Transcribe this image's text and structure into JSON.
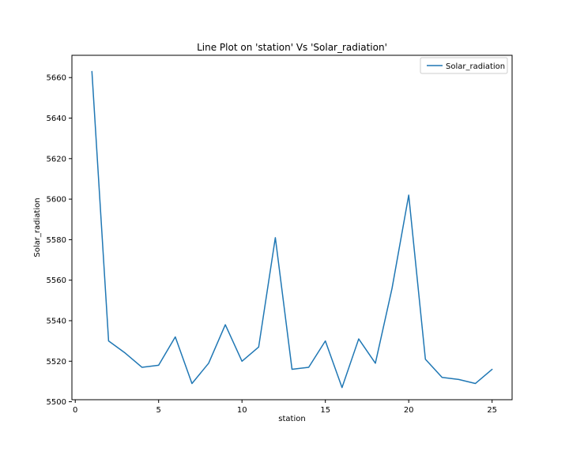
{
  "chart_data": {
    "type": "line",
    "title": "Line Plot on 'station' Vs 'Solar_radiation'",
    "xlabel": "station",
    "ylabel": "Solar_radiation",
    "x": [
      1,
      2,
      3,
      4,
      5,
      6,
      7,
      8,
      9,
      10,
      11,
      12,
      13,
      14,
      15,
      16,
      17,
      18,
      19,
      20,
      21,
      22,
      23,
      24,
      25
    ],
    "series": [
      {
        "name": "Solar_radiation",
        "color": "#1f77b4",
        "values": [
          5663,
          5530,
          5524,
          5517,
          5518,
          5532,
          5509,
          5519,
          5538,
          5520,
          5527,
          5581,
          5516,
          5517,
          5530,
          5507,
          5531,
          5519,
          5556,
          5602,
          5521,
          5512,
          5511,
          5509,
          5516
        ]
      }
    ],
    "xlim": [
      -0.2,
      26.2
    ],
    "ylim": [
      5501,
      5671
    ],
    "xticks": [
      0,
      5,
      10,
      15,
      20,
      25
    ],
    "yticks": [
      5500,
      5520,
      5540,
      5560,
      5580,
      5600,
      5620,
      5640,
      5660
    ],
    "legend": {
      "position": "top-right",
      "entries": [
        "Solar_radiation"
      ]
    },
    "grid": false
  }
}
